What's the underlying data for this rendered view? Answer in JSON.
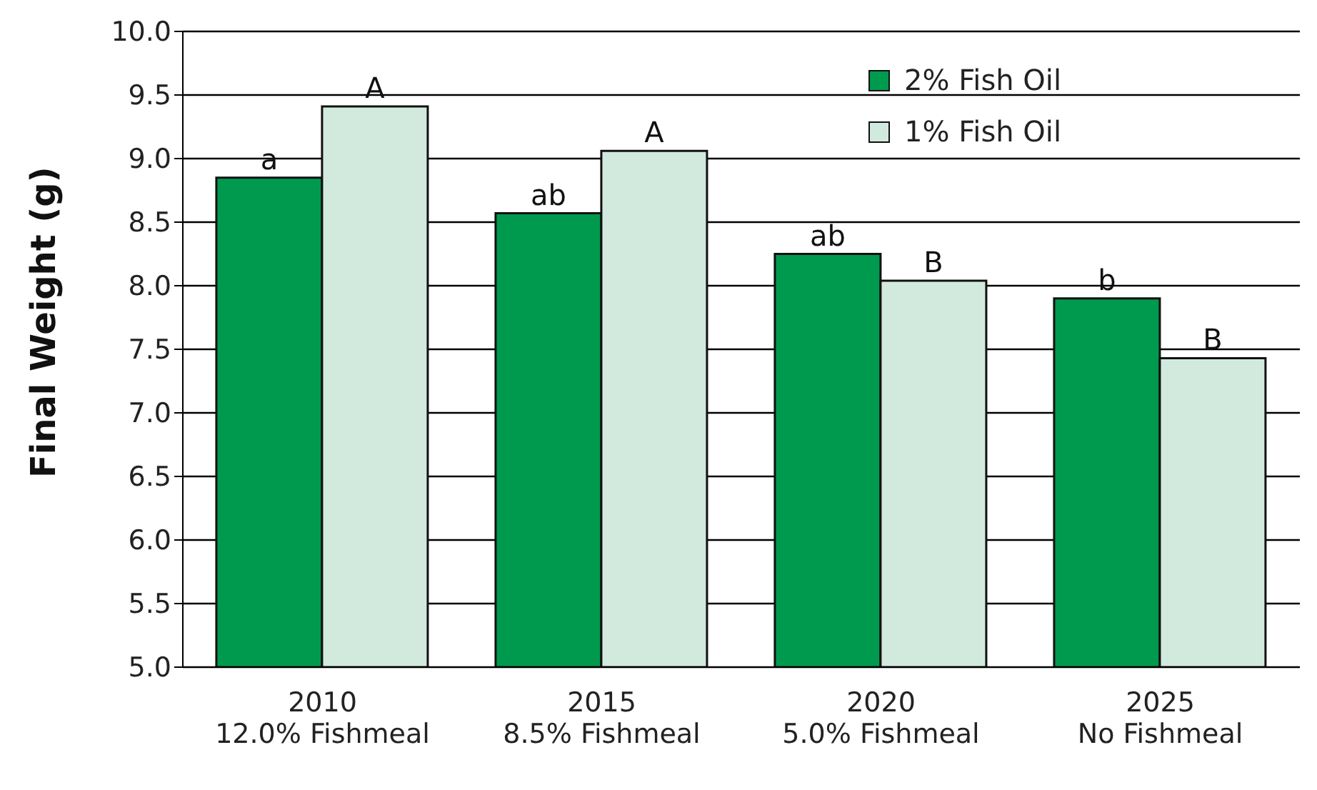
{
  "chart_data": {
    "type": "bar",
    "ylabel": "Final Weight (g)",
    "categories": [
      "2010\n12.0% Fishmeal",
      "2015\n8.5% Fishmeal",
      "2020\n5.0% Fishmeal",
      "2025\nNo Fishmeal"
    ],
    "series": [
      {
        "name": "2% Fish Oil",
        "color": "#009a4e",
        "values": [
          8.85,
          8.57,
          8.25,
          7.9
        ],
        "value_labels": [
          "a",
          "ab",
          "ab",
          "b"
        ]
      },
      {
        "name": "1% Fish Oil",
        "color": "#d2eadd",
        "values": [
          9.41,
          9.06,
          8.04,
          7.43
        ],
        "value_labels": [
          "A",
          "A",
          "B",
          "B"
        ]
      }
    ],
    "ylim": [
      5.0,
      10.0
    ],
    "yticks": [
      {
        "value": 5,
        "label": "5.0"
      },
      {
        "value": 5.5,
        "label": "5.5"
      },
      {
        "value": 6,
        "label": "6.0"
      },
      {
        "value": 6.5,
        "label": "6.5"
      },
      {
        "value": 7,
        "label": "7.0"
      },
      {
        "value": 7.5,
        "label": "7.5"
      },
      {
        "value": 8,
        "label": "8.0"
      },
      {
        "value": 8.5,
        "label": "8.5"
      },
      {
        "value": 9,
        "label": "9.0"
      },
      {
        "value": 9.5,
        "label": "9.5"
      },
      {
        "value": 10,
        "label": "10.0"
      }
    ],
    "grid": "y",
    "legend": "top right"
  }
}
